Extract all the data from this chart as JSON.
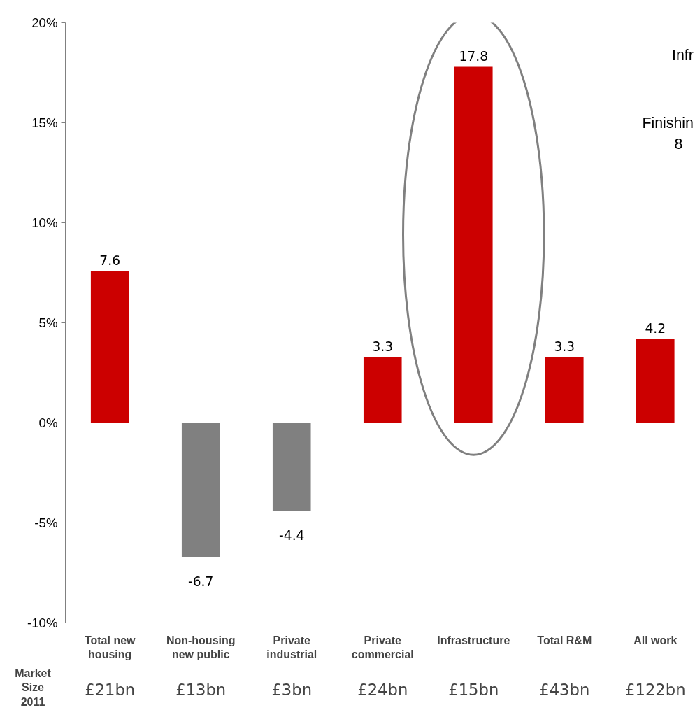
{
  "chart_data": {
    "type": "bar",
    "categories": [
      "Total new housing",
      "Non-housing new public",
      "Private industrial",
      "Private commercial",
      "Infrastructure",
      "Total R&M",
      "All work"
    ],
    "values": [
      7.6,
      -6.7,
      -4.4,
      3.3,
      17.8,
      3.3,
      4.2
    ],
    "colors": [
      "#cc0000",
      "#808080",
      "#808080",
      "#cc0000",
      "#cc0000",
      "#cc0000",
      "#cc0000"
    ],
    "data_labels": true,
    "ylim": [
      -10,
      20
    ],
    "yticks": [
      {
        "value": -10,
        "label": "-10%"
      },
      {
        "value": -5,
        "label": "-5%"
      },
      {
        "value": 0,
        "label": "0%"
      },
      {
        "value": 5,
        "label": "5%"
      },
      {
        "value": 10,
        "label": "10%"
      },
      {
        "value": 15,
        "label": "15%"
      },
      {
        "value": 20,
        "label": "20%"
      }
    ],
    "grid": false,
    "annotations": [
      "Infr",
      "Finishin",
      "8",
      "Market Size 2011",
      "£21bn",
      "£13bn",
      "£3bn",
      "£24bn",
      "£15bn",
      "£43bn",
      "£122bn"
    ]
  }
}
